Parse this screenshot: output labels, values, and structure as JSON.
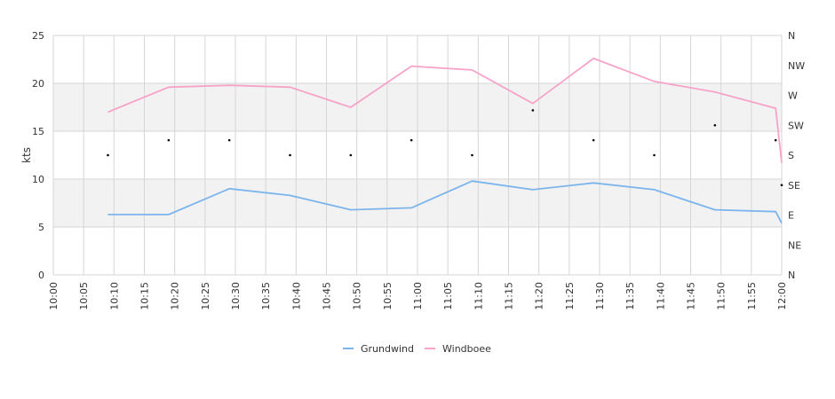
{
  "chart_data": {
    "type": "line",
    "ylabel": "kts",
    "ylim": [
      0,
      25
    ],
    "y_ticks": [
      "0",
      "5",
      "10",
      "15",
      "20",
      "25"
    ],
    "x_range": [
      "10:00",
      "12:00"
    ],
    "x_ticks": [
      "10:00",
      "10:05",
      "10:10",
      "10:15",
      "10:20",
      "10:25",
      "10:30",
      "10:35",
      "10:40",
      "10:45",
      "10:50",
      "10:55",
      "11:00",
      "11:05",
      "11:10",
      "11:15",
      "11:20",
      "11:25",
      "11:30",
      "11:35",
      "11:40",
      "11:45",
      "11:50",
      "11:55",
      "12:00"
    ],
    "y2_ticks": [
      "N",
      "NW",
      "W",
      "SW",
      "S",
      "SE",
      "E",
      "NE",
      "N"
    ],
    "y2_range": [
      "N",
      "N"
    ],
    "bands": [
      [
        5,
        10
      ],
      [
        15,
        20
      ]
    ],
    "grid": true,
    "legend_position": "bottom",
    "series": [
      {
        "name": "Grundwind",
        "color": "#7cb5ec",
        "x": [
          "10:09",
          "10:19",
          "10:29",
          "10:39",
          "10:49",
          "10:59",
          "11:09",
          "11:19",
          "11:29",
          "11:39",
          "11:49",
          "11:59",
          "12:00"
        ],
        "y": [
          6.3,
          6.3,
          9.0,
          8.3,
          6.8,
          7.0,
          9.8,
          8.9,
          9.6,
          8.9,
          6.8,
          6.6,
          5.4
        ]
      },
      {
        "name": "Windboee",
        "color": "#f7a3c9",
        "x": [
          "10:09",
          "10:19",
          "10:29",
          "10:39",
          "10:49",
          "10:59",
          "11:09",
          "11:19",
          "11:29",
          "11:39",
          "11:49",
          "11:59",
          "12:00"
        ],
        "y": [
          17.0,
          19.6,
          19.8,
          19.6,
          17.5,
          21.8,
          21.4,
          17.9,
          22.6,
          20.2,
          19.1,
          17.4,
          11.7
        ]
      }
    ],
    "direction_points": {
      "x": [
        "10:09",
        "10:19",
        "10:29",
        "10:39",
        "10:49",
        "10:59",
        "11:09",
        "11:19",
        "11:29",
        "11:39",
        "11:49",
        "11:59",
        "12:00"
      ],
      "direction": [
        "S",
        "SSW",
        "SSW",
        "S",
        "S",
        "SSW",
        "S",
        "WSW",
        "SSW",
        "S",
        "SW",
        "SSW",
        "SE"
      ]
    }
  }
}
